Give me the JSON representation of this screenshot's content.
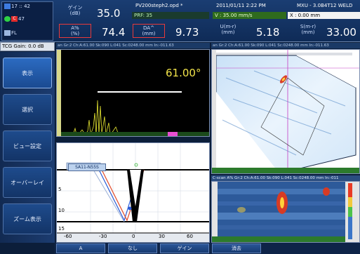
{
  "status": {
    "row1": "17 :: 42",
    "row2": "47",
    "row3": "FL"
  },
  "readouts": {
    "gain_label": "ゲイン",
    "gain_unit": "(dB)",
    "gain_value": "35.0",
    "amp_label": "A%",
    "amp_unit": "(%)",
    "amp_value": "74.4",
    "da_label": "DA^",
    "da_unit": "(mm)",
    "da_value": "9.73",
    "um_label": "U(m-r)",
    "um_unit": "(mm)",
    "um_value": "5.18",
    "sm_label": "S(m-r)",
    "sm_unit": "(mm)",
    "sm_value": "33.00"
  },
  "info": {
    "file_name": "PV200steph2.opd *",
    "datetime": "2011/01/11  2:22 PM",
    "device": "MXU - 3.0B4T12 WELD",
    "prf": "PRF: 35",
    "velocity": "V : 35.00 mm/s",
    "x_pos": "X : 0.00 mm"
  },
  "tcg": "TCG Gain:  0.0 dB",
  "menu": {
    "display": "表示",
    "select": "選択",
    "view_setup": "ビュー設定",
    "overlay": "オーバーレイ",
    "zoom": "ズーム表示"
  },
  "ascan": {
    "title": "an Gr:2 Ch:A:61.00 Sk:090 L:041 Sc:0248.00 mm In:-011.63",
    "angle": "61.00°"
  },
  "sector": {
    "title": "an Gr:2 Ch:A:61.00 Sk:090 L:041 Sc:0248.00 mm In:-011.63"
  },
  "cscan": {
    "title": "C-scan A% Gr:2 Ch:A:61.00 Sk:090 L:041 Sc:0248.00 mm In:-011"
  },
  "wedge": {
    "probe_label": "SA11-N55S",
    "x_ticks": [
      "-60",
      "-30",
      "0",
      "30",
      "60"
    ],
    "y_ticks": [
      "5",
      "10",
      "15"
    ]
  },
  "bottom": {
    "a": "A",
    "none": "なし",
    "gain": "ゲイン",
    "clear": "消去"
  }
}
